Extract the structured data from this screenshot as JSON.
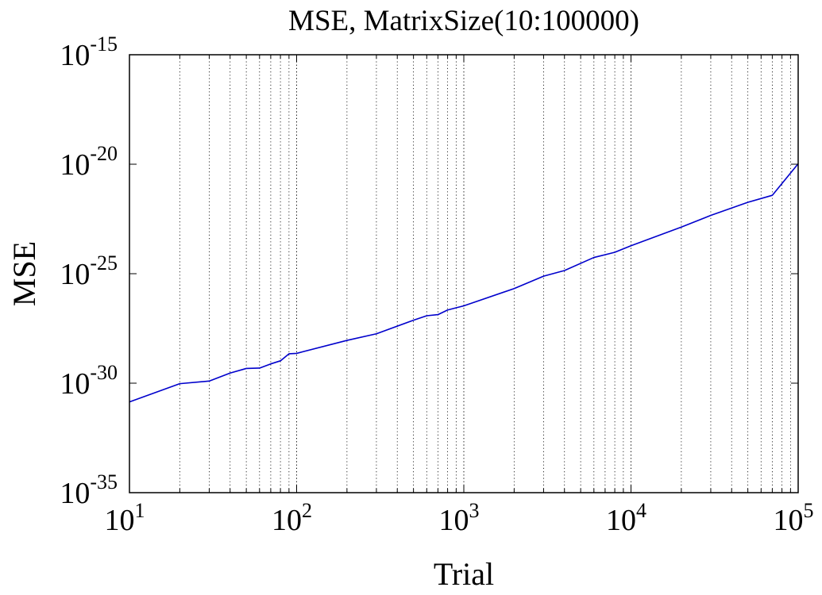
{
  "chart_data": {
    "type": "line",
    "title": "MSE, MatrixSize(10:100000)",
    "xlabel": "Trial",
    "ylabel": "MSE",
    "xscale": "log",
    "yscale": "log",
    "xlim": [
      10,
      100000
    ],
    "ylim": [
      1e-35,
      1e-15
    ],
    "grid": "x-minor-dotted",
    "x_ticks": [
      {
        "value": 10,
        "base": "10",
        "exp": "1"
      },
      {
        "value": 100,
        "base": "10",
        "exp": "2"
      },
      {
        "value": 1000,
        "base": "10",
        "exp": "3"
      },
      {
        "value": 10000,
        "base": "10",
        "exp": "4"
      },
      {
        "value": 100000,
        "base": "10",
        "exp": "5"
      }
    ],
    "y_ticks": [
      {
        "value": 1e-15,
        "base": "10",
        "exp": "-15"
      },
      {
        "value": 1e-20,
        "base": "10",
        "exp": "-20"
      },
      {
        "value": 1e-25,
        "base": "10",
        "exp": "-25"
      },
      {
        "value": 1e-30,
        "base": "10",
        "exp": "-30"
      },
      {
        "value": 1e-35,
        "base": "10",
        "exp": "-35"
      }
    ],
    "series": [
      {
        "color": "#0000cc",
        "x": [
          10,
          20,
          30,
          40,
          50,
          60,
          70,
          80,
          90,
          100,
          200,
          300,
          500,
          600,
          700,
          800,
          1000,
          2000,
          3000,
          4000,
          6000,
          8000,
          10000,
          20000,
          30000,
          50000,
          70000,
          100000
        ],
        "y": [
          1.4e-31,
          9.5e-31,
          1.25e-30,
          2.9e-30,
          4.7e-30,
          4.9e-30,
          7.6e-30,
          1.05e-29,
          2.2e-29,
          2.3e-29,
          9e-29,
          1.8e-28,
          7.5e-28,
          1.2e-27,
          1.35e-27,
          2.2e-27,
          3.4e-27,
          2.1e-26,
          7.7e-26,
          1.4e-25,
          5.5e-25,
          9.5e-25,
          1.9e-24,
          1.35e-23,
          4.6e-23,
          1.82e-22,
          3.8e-22,
          1.05e-20
        ]
      }
    ]
  }
}
